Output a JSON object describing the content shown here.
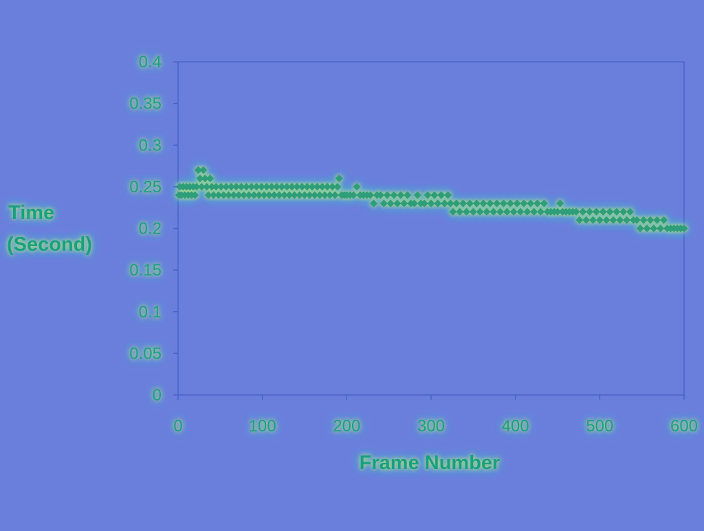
{
  "chart_data": {
    "type": "scatter",
    "xlabel": "Frame Number",
    "ylabel_lines": [
      "Time",
      "(Second)"
    ],
    "xlim": [
      0,
      600
    ],
    "ylim": [
      0,
      0.4
    ],
    "xticks": [
      "0",
      "100",
      "200",
      "300",
      "400",
      "500",
      "600"
    ],
    "yticks": [
      "0",
      "0.05",
      "0.1",
      "0.15",
      "0.2",
      "0.25",
      "0.3",
      "0.35",
      "0.4"
    ],
    "grid": false,
    "legend": "none",
    "colors": {
      "background": "#6a7fdc",
      "axes": "#4a62c8",
      "marker": "#2e9e7a",
      "label_fill": "#16a085",
      "glow_outer": "#34d6c0",
      "glow_inner": "#c5e24a"
    },
    "series": [
      {
        "values": [
          [
            1,
            0.24
          ],
          [
            2,
            0.25
          ],
          [
            4,
            0.24
          ],
          [
            6,
            0.25
          ],
          [
            8,
            0.24
          ],
          [
            10,
            0.25
          ],
          [
            12,
            0.24
          ],
          [
            14,
            0.25
          ],
          [
            16,
            0.24
          ],
          [
            18,
            0.25
          ],
          [
            20,
            0.24
          ],
          [
            22,
            0.25
          ],
          [
            24,
            0.27
          ],
          [
            26,
            0.26
          ],
          [
            28,
            0.25
          ],
          [
            30,
            0.27
          ],
          [
            32,
            0.26
          ],
          [
            34,
            0.25
          ],
          [
            36,
            0.24
          ],
          [
            38,
            0.26
          ],
          [
            40,
            0.25
          ],
          [
            42,
            0.24
          ],
          [
            45,
            0.25
          ],
          [
            48,
            0.24
          ],
          [
            51,
            0.25
          ],
          [
            54,
            0.24
          ],
          [
            57,
            0.25
          ],
          [
            60,
            0.24
          ],
          [
            63,
            0.25
          ],
          [
            66,
            0.24
          ],
          [
            69,
            0.25
          ],
          [
            72,
            0.24
          ],
          [
            75,
            0.25
          ],
          [
            78,
            0.24
          ],
          [
            81,
            0.25
          ],
          [
            84,
            0.24
          ],
          [
            87,
            0.25
          ],
          [
            90,
            0.24
          ],
          [
            93,
            0.25
          ],
          [
            96,
            0.24
          ],
          [
            99,
            0.25
          ],
          [
            102,
            0.24
          ],
          [
            105,
            0.25
          ],
          [
            108,
            0.24
          ],
          [
            111,
            0.25
          ],
          [
            114,
            0.24
          ],
          [
            117,
            0.25
          ],
          [
            120,
            0.24
          ],
          [
            123,
            0.25
          ],
          [
            126,
            0.24
          ],
          [
            129,
            0.25
          ],
          [
            132,
            0.24
          ],
          [
            135,
            0.25
          ],
          [
            138,
            0.24
          ],
          [
            141,
            0.25
          ],
          [
            144,
            0.24
          ],
          [
            147,
            0.25
          ],
          [
            150,
            0.24
          ],
          [
            153,
            0.25
          ],
          [
            156,
            0.24
          ],
          [
            159,
            0.25
          ],
          [
            162,
            0.24
          ],
          [
            165,
            0.25
          ],
          [
            168,
            0.24
          ],
          [
            171,
            0.25
          ],
          [
            174,
            0.24
          ],
          [
            177,
            0.25
          ],
          [
            180,
            0.24
          ],
          [
            183,
            0.25
          ],
          [
            186,
            0.24
          ],
          [
            189,
            0.25
          ],
          [
            191,
            0.26
          ],
          [
            194,
            0.24
          ],
          [
            197,
            0.24
          ],
          [
            200,
            0.24
          ],
          [
            204,
            0.24
          ],
          [
            208,
            0.24
          ],
          [
            212,
            0.25
          ],
          [
            216,
            0.24
          ],
          [
            220,
            0.24
          ],
          [
            224,
            0.24
          ],
          [
            228,
            0.24
          ],
          [
            232,
            0.23
          ],
          [
            236,
            0.24
          ],
          [
            240,
            0.24
          ],
          [
            244,
            0.23
          ],
          [
            248,
            0.24
          ],
          [
            252,
            0.23
          ],
          [
            256,
            0.24
          ],
          [
            260,
            0.23
          ],
          [
            264,
            0.24
          ],
          [
            268,
            0.23
          ],
          [
            272,
            0.24
          ],
          [
            276,
            0.23
          ],
          [
            280,
            0.23
          ],
          [
            284,
            0.24
          ],
          [
            288,
            0.23
          ],
          [
            292,
            0.23
          ],
          [
            296,
            0.24
          ],
          [
            300,
            0.23
          ],
          [
            304,
            0.24
          ],
          [
            308,
            0.23
          ],
          [
            312,
            0.24
          ],
          [
            316,
            0.23
          ],
          [
            320,
            0.24
          ],
          [
            323,
            0.23
          ],
          [
            326,
            0.22
          ],
          [
            330,
            0.23
          ],
          [
            334,
            0.22
          ],
          [
            338,
            0.23
          ],
          [
            342,
            0.22
          ],
          [
            346,
            0.23
          ],
          [
            350,
            0.22
          ],
          [
            354,
            0.23
          ],
          [
            358,
            0.22
          ],
          [
            362,
            0.23
          ],
          [
            366,
            0.22
          ],
          [
            370,
            0.23
          ],
          [
            374,
            0.22
          ],
          [
            378,
            0.23
          ],
          [
            382,
            0.22
          ],
          [
            386,
            0.23
          ],
          [
            390,
            0.22
          ],
          [
            394,
            0.23
          ],
          [
            398,
            0.22
          ],
          [
            402,
            0.23
          ],
          [
            406,
            0.22
          ],
          [
            410,
            0.23
          ],
          [
            414,
            0.22
          ],
          [
            418,
            0.23
          ],
          [
            422,
            0.22
          ],
          [
            426,
            0.23
          ],
          [
            430,
            0.22
          ],
          [
            434,
            0.23
          ],
          [
            438,
            0.22
          ],
          [
            442,
            0.22
          ],
          [
            446,
            0.22
          ],
          [
            450,
            0.22
          ],
          [
            453,
            0.23
          ],
          [
            456,
            0.22
          ],
          [
            460,
            0.22
          ],
          [
            464,
            0.22
          ],
          [
            468,
            0.22
          ],
          [
            472,
            0.22
          ],
          [
            476,
            0.21
          ],
          [
            480,
            0.22
          ],
          [
            484,
            0.21
          ],
          [
            488,
            0.22
          ],
          [
            492,
            0.21
          ],
          [
            496,
            0.22
          ],
          [
            500,
            0.21
          ],
          [
            504,
            0.22
          ],
          [
            508,
            0.21
          ],
          [
            512,
            0.22
          ],
          [
            516,
            0.21
          ],
          [
            520,
            0.22
          ],
          [
            524,
            0.21
          ],
          [
            528,
            0.22
          ],
          [
            532,
            0.21
          ],
          [
            536,
            0.22
          ],
          [
            540,
            0.21
          ],
          [
            544,
            0.21
          ],
          [
            548,
            0.2
          ],
          [
            552,
            0.21
          ],
          [
            556,
            0.2
          ],
          [
            560,
            0.21
          ],
          [
            564,
            0.2
          ],
          [
            568,
            0.21
          ],
          [
            572,
            0.2
          ],
          [
            576,
            0.21
          ],
          [
            580,
            0.2
          ],
          [
            584,
            0.2
          ],
          [
            588,
            0.2
          ],
          [
            592,
            0.2
          ],
          [
            596,
            0.2
          ],
          [
            600,
            0.2
          ]
        ]
      }
    ]
  }
}
